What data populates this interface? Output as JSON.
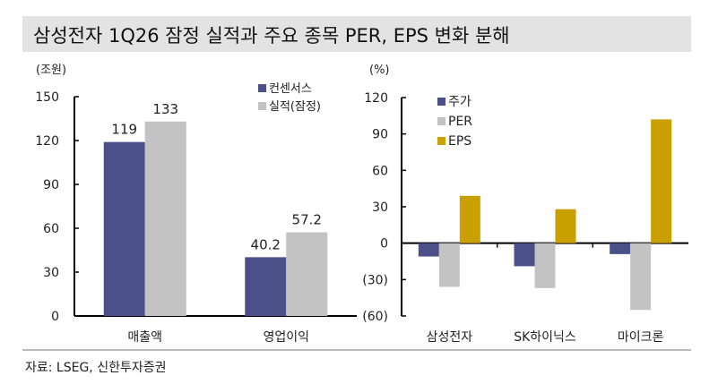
{
  "title": "삼성전자 1Q26 잠정 실적과 주요 종목 PER, EPS 변화 분해",
  "source": "자료: LSEG, 신한투자증권",
  "colors": {
    "navy": "#4b5089",
    "gray": "#c3c3c3",
    "gold": "#c9a000"
  },
  "chart_data": [
    {
      "type": "bar",
      "unit_label": "(조원)",
      "categories": [
        "매출액",
        "영업이익"
      ],
      "series": [
        {
          "name": "컨센서스",
          "values": [
            119,
            40.2
          ],
          "data_labels": [
            "119",
            "40.2"
          ]
        },
        {
          "name": "실적(잠정)",
          "values": [
            133,
            57.2
          ],
          "data_labels": [
            "133",
            "57.2"
          ]
        }
      ],
      "ylim": [
        0,
        150
      ],
      "yticks": [
        "0",
        "30",
        "60",
        "90",
        "120",
        "150"
      ],
      "legend": "top-right"
    },
    {
      "type": "bar",
      "unit_label": "(%)",
      "categories": [
        "삼성전자",
        "SK하이닉스",
        "마이크론"
      ],
      "series": [
        {
          "name": "주가",
          "values": [
            -11,
            -19,
            -9
          ]
        },
        {
          "name": "PER",
          "values": [
            -36,
            -37,
            -55
          ]
        },
        {
          "name": "EPS",
          "values": [
            39,
            28,
            102
          ]
        }
      ],
      "ylim": [
        -60,
        120
      ],
      "yticks": [
        "(60)",
        "(30)",
        "0",
        "30",
        "60",
        "90",
        "120"
      ],
      "legend": "top-left"
    }
  ]
}
